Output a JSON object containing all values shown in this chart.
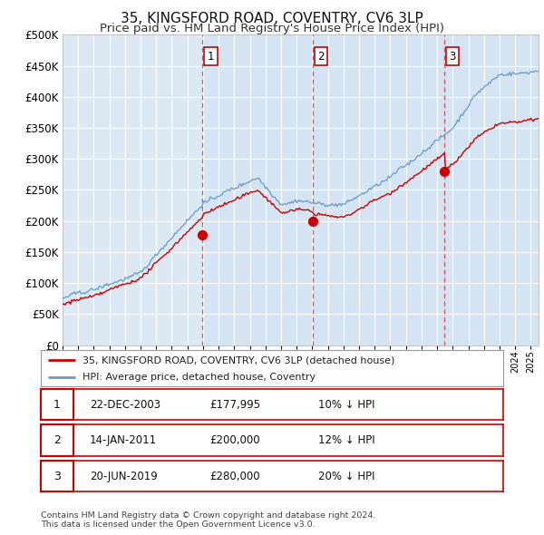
{
  "title": "35, KINGSFORD ROAD, COVENTRY, CV6 3LP",
  "subtitle": "Price paid vs. HM Land Registry's House Price Index (HPI)",
  "title_fontsize": 11,
  "subtitle_fontsize": 9.5,
  "background_color": "#ffffff",
  "plot_bg_color": "#dce9f5",
  "plot_bg_color2": "#e8f1fa",
  "grid_color": "#ffffff",
  "hpi_color": "#6699cc",
  "price_color": "#cc0000",
  "vline_color": "#dd4444",
  "ylabel_ticks": [
    "£0",
    "£50K",
    "£100K",
    "£150K",
    "£200K",
    "£250K",
    "£300K",
    "£350K",
    "£400K",
    "£450K",
    "£500K"
  ],
  "ytick_values": [
    0,
    50000,
    100000,
    150000,
    200000,
    250000,
    300000,
    350000,
    400000,
    450000,
    500000
  ],
  "sales": [
    {
      "date_num": 2003.97,
      "price": 177995,
      "label": "1"
    },
    {
      "date_num": 2011.04,
      "price": 200000,
      "label": "2"
    },
    {
      "date_num": 2019.47,
      "price": 280000,
      "label": "3"
    }
  ],
  "vlines": [
    2003.97,
    2011.04,
    2019.47
  ],
  "legend_entries": [
    "35, KINGSFORD ROAD, COVENTRY, CV6 3LP (detached house)",
    "HPI: Average price, detached house, Coventry"
  ],
  "table_rows": [
    {
      "num": "1",
      "date": "22-DEC-2003",
      "price": "£177,995",
      "hpi": "10% ↓ HPI"
    },
    {
      "num": "2",
      "date": "14-JAN-2011",
      "price": "£200,000",
      "hpi": "12% ↓ HPI"
    },
    {
      "num": "3",
      "date": "20-JUN-2019",
      "price": "£280,000",
      "hpi": "20% ↓ HPI"
    }
  ],
  "footer": "Contains HM Land Registry data © Crown copyright and database right 2024.\nThis data is licensed under the Open Government Licence v3.0.",
  "xmin": 1995.0,
  "xmax": 2025.5,
  "ymin": 0,
  "ymax": 500000
}
